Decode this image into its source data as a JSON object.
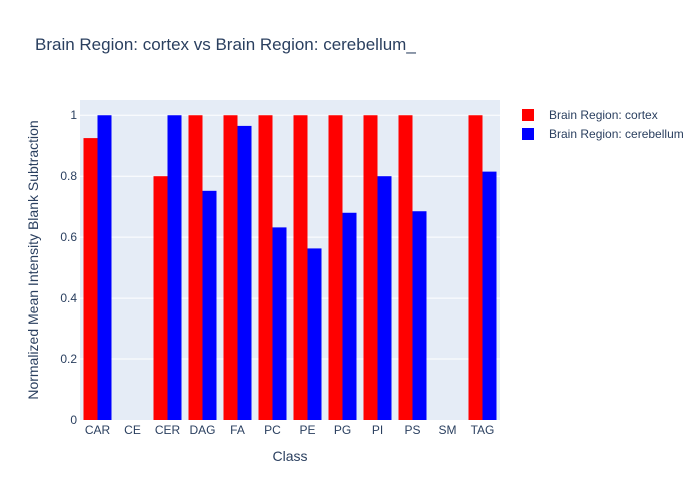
{
  "chart_data": {
    "type": "bar",
    "title": "Brain Region: cortex vs Brain Region: cerebellum_",
    "xlabel": "Class",
    "ylabel": "Normalized Mean Intensity Blank Subtraction",
    "categories": [
      "CAR",
      "CE",
      "CER",
      "DAG",
      "FA",
      "PC",
      "PE",
      "PG",
      "PI",
      "PS",
      "SM",
      "TAG"
    ],
    "series": [
      {
        "name": "Brain Region: cortex",
        "color": "#ff0000",
        "values": [
          0.925,
          null,
          0.8,
          1.0,
          1.0,
          1.0,
          1.0,
          1.0,
          1.0,
          1.0,
          null,
          1.0
        ]
      },
      {
        "name": "Brain Region: cerebellum",
        "color": "#0000ff",
        "values": [
          1.0,
          null,
          1.0,
          0.752,
          0.965,
          0.632,
          0.563,
          0.68,
          0.8,
          0.685,
          null,
          0.815
        ]
      }
    ],
    "ylim": [
      0,
      1.05
    ],
    "yticks": [
      {
        "value": 0,
        "label": "0"
      },
      {
        "value": 0.2,
        "label": "0.2"
      },
      {
        "value": 0.4,
        "label": "0.4"
      },
      {
        "value": 0.6,
        "label": "0.6"
      },
      {
        "value": 0.8,
        "label": "0.8"
      },
      {
        "value": 1,
        "label": "1"
      }
    ],
    "grid": true,
    "legend_position": "top-right",
    "plot_background": "#e5ecf6"
  }
}
